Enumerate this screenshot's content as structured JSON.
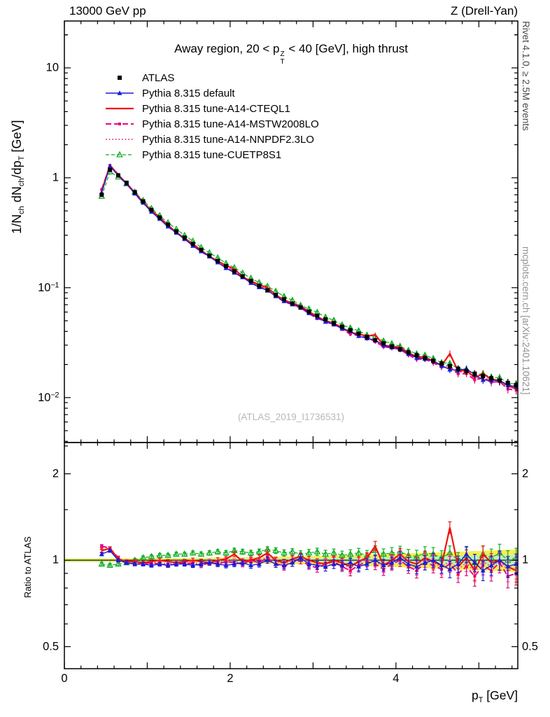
{
  "page": {
    "header_left": "13000 GeV pp",
    "header_right": "Z (Drell-Yan)",
    "rivet_note": "Rivet 4.1.0, ≥ 2.5M events",
    "mcplots_note": "mcplots.cern.ch [arXiv:2401.10621]",
    "watermark": "(ATLAS_2019_I1736531)"
  },
  "chart_data": {
    "type": "line",
    "title_text": "Away region, 20 < pT(Z) < 40 [GeV], high thrust",
    "title_parts": {
      "pre": "Away region, 20 < p",
      "stack_top": "Z",
      "stack_bottom": "T",
      "post": " < 40 [GeV], high thrust"
    },
    "xlabel_text": "pT [GeV]",
    "xlabel_segments": [
      {
        "t": "p"
      },
      {
        "t": "T",
        "s": "sub"
      },
      {
        "t": " [GeV]"
      }
    ],
    "ylabel_main_text": "1/Nch dNch/dpT [GeV]",
    "ylabel_main_segments": [
      {
        "t": "1/N"
      },
      {
        "t": "ch",
        "s": "sub"
      },
      {
        "t": " dN"
      },
      {
        "t": "ch",
        "s": "sub"
      },
      {
        "t": "/dp"
      },
      {
        "t": "T",
        "s": "sub"
      },
      {
        "t": " [GeV]"
      }
    ],
    "ylabel_ratio": "Ratio to ATLAS",
    "grid": false,
    "legend_position": "top-left-inside",
    "xlim": [
      0,
      5.47
    ],
    "ylim_main": [
      0.0039,
      26.7
    ],
    "ylim_ratio": [
      0.419,
      2.57
    ],
    "x_ticks": [
      {
        "v": 0,
        "label": "0"
      },
      {
        "v": 2,
        "label": "2"
      },
      {
        "v": 4,
        "label": "4"
      }
    ],
    "y_ticks_main": [
      {
        "v": 10,
        "label": "10",
        "exp": ""
      },
      {
        "v": 1,
        "label": "1",
        "exp": ""
      },
      {
        "v": 0.1,
        "label": "10",
        "exp": "−1"
      },
      {
        "v": 0.01,
        "label": "10",
        "exp": "−2"
      }
    ],
    "y_ticks_ratio": [
      {
        "v": 2,
        "label": "2"
      },
      {
        "v": 1,
        "label": "1"
      },
      {
        "v": 0.5,
        "label": "0.5"
      }
    ],
    "uncertainty_bands": {
      "outer_color": "#f7ee52",
      "inner_color": "#bdeebd"
    },
    "x": [
      0.45,
      0.55,
      0.65,
      0.75,
      0.85,
      0.95,
      1.05,
      1.15,
      1.25,
      1.35,
      1.45,
      1.55,
      1.65,
      1.75,
      1.85,
      1.95,
      2.05,
      2.15,
      2.25,
      2.35,
      2.45,
      2.55,
      2.65,
      2.75,
      2.85,
      2.95,
      3.05,
      3.15,
      3.25,
      3.35,
      3.45,
      3.55,
      3.65,
      3.75,
      3.85,
      3.95,
      4.05,
      4.15,
      4.25,
      4.35,
      4.45,
      4.55,
      4.65,
      4.75,
      4.85,
      4.95,
      5.05,
      5.15,
      5.25,
      5.35,
      5.45
    ],
    "err_frac": [
      0.015,
      0.015,
      0.015,
      0.015,
      0.015,
      0.016,
      0.016,
      0.017,
      0.017,
      0.018,
      0.018,
      0.019,
      0.02,
      0.021,
      0.022,
      0.022,
      0.023,
      0.024,
      0.025,
      0.026,
      0.027,
      0.028,
      0.03,
      0.031,
      0.032,
      0.034,
      0.035,
      0.037,
      0.038,
      0.04,
      0.042,
      0.044,
      0.046,
      0.048,
      0.05,
      0.052,
      0.054,
      0.056,
      0.059,
      0.061,
      0.063,
      0.066,
      0.068,
      0.071,
      0.074,
      0.076,
      0.079,
      0.082,
      0.085,
      0.088,
      0.09
    ],
    "series": [
      {
        "name": "ATLAS",
        "kind": "data",
        "color": "#000000",
        "line": "none",
        "marker": "square-filled",
        "values": [
          0.7,
          1.18,
          1.05,
          0.9,
          0.74,
          0.61,
          0.51,
          0.435,
          0.375,
          0.325,
          0.285,
          0.25,
          0.221,
          0.196,
          0.175,
          0.157,
          0.141,
          0.127,
          0.115,
          0.104,
          0.0945,
          0.086,
          0.0785,
          0.0718,
          0.0658,
          0.0605,
          0.0557,
          0.0514,
          0.0476,
          0.0441,
          0.041,
          0.0382,
          0.0356,
          0.0333,
          0.0312,
          0.0292,
          0.0274,
          0.0258,
          0.0243,
          0.0229,
          0.0216,
          0.0204,
          0.0193,
          0.0183,
          0.0174,
          0.0165,
          0.0157,
          0.015,
          0.0143,
          0.0136,
          0.013
        ]
      },
      {
        "name": "Pythia 8.315 default",
        "kind": "mc",
        "color": "#1c1cd6",
        "line": "solid",
        "width": 1.4,
        "marker": "triangle-filled",
        "ratio_to_atlas": [
          1.05,
          1.08,
          1.0,
          0.98,
          0.97,
          0.97,
          0.96,
          0.97,
          0.96,
          0.97,
          0.97,
          0.96,
          0.97,
          0.98,
          0.97,
          0.96,
          0.97,
          0.98,
          0.96,
          0.97,
          1.0,
          0.97,
          0.96,
          0.98,
          1.02,
          0.97,
          0.96,
          0.95,
          0.97,
          0.96,
          0.98,
          0.95,
          0.97,
          1.0,
          0.96,
          0.98,
          1.02,
          0.97,
          0.95,
          0.98,
          1.0,
          0.96,
          0.93,
          0.97,
          1.05,
          0.98,
          0.92,
          0.96,
          1.0,
          0.95,
          0.97
        ]
      },
      {
        "name": "Pythia 8.315 tune-A14-CTEQL1",
        "kind": "mc",
        "color": "#ef1310",
        "line": "solid",
        "width": 2.2,
        "marker": "none",
        "ratio_to_atlas": [
          1.08,
          1.1,
          1.01,
          0.99,
          0.99,
          0.98,
          0.99,
          1.0,
          0.99,
          0.98,
          0.99,
          1.0,
          0.99,
          0.98,
          1.0,
          1.01,
          1.05,
          0.99,
          1.0,
          1.02,
          1.06,
          1.0,
          0.98,
          1.01,
          1.03,
          1.0,
          0.98,
          0.97,
          1.0,
          0.98,
          0.95,
          0.99,
          1.02,
          1.12,
          0.96,
          1.0,
          1.05,
          0.99,
          0.97,
          1.02,
          0.99,
          0.96,
          1.3,
          0.95,
          1.02,
          0.92,
          1.05,
          0.98,
          1.0,
          0.95,
          0.92
        ]
      },
      {
        "name": "Pythia 8.315 tune-A14-MSTW2008LO",
        "kind": "mc",
        "color": "#e5097f",
        "line": "dash",
        "width": 2.0,
        "marker": "square-small",
        "ratio_to_atlas": [
          1.12,
          1.1,
          1.02,
          0.98,
          0.97,
          0.97,
          0.98,
          0.97,
          0.96,
          0.97,
          0.98,
          0.97,
          0.96,
          0.98,
          0.97,
          0.99,
          0.98,
          0.97,
          1.0,
          0.98,
          1.02,
          0.97,
          0.95,
          0.98,
          1.0,
          0.96,
          0.94,
          0.97,
          0.99,
          0.95,
          0.92,
          0.96,
          0.99,
          0.97,
          0.93,
          0.97,
          1.0,
          0.95,
          0.92,
          0.98,
          0.96,
          0.93,
          0.97,
          0.9,
          0.95,
          0.88,
          0.96,
          0.92,
          0.98,
          0.88,
          0.9
        ]
      },
      {
        "name": "Pythia 8.315 tune-A14-NNPDF2.3LO",
        "kind": "mc",
        "color": "#f04fa8",
        "line": "dot",
        "width": 2.0,
        "marker": "dot",
        "ratio_to_atlas": [
          1.1,
          1.08,
          1.0,
          0.98,
          0.98,
          0.97,
          0.98,
          0.98,
          0.97,
          0.98,
          0.99,
          0.98,
          0.97,
          0.99,
          0.98,
          1.0,
          0.99,
          0.98,
          1.01,
          0.99,
          1.03,
          0.99,
          0.97,
          1.0,
          1.02,
          0.98,
          0.96,
          0.98,
          1.0,
          0.97,
          0.94,
          0.98,
          1.01,
          0.99,
          0.95,
          0.99,
          1.03,
          0.97,
          0.94,
          1.0,
          0.98,
          0.95,
          0.99,
          0.93,
          0.98,
          0.91,
          0.99,
          0.95,
          1.0,
          0.92,
          0.94
        ]
      },
      {
        "name": "Pythia 8.315 tune-CUETP8S1",
        "kind": "mc",
        "color": "#0fae22",
        "line": "dash-thin",
        "width": 1.2,
        "marker": "triangle-open",
        "ratio_to_atlas": [
          0.97,
          0.96,
          0.97,
          0.98,
          1.0,
          1.02,
          1.03,
          1.04,
          1.04,
          1.05,
          1.05,
          1.06,
          1.05,
          1.06,
          1.07,
          1.06,
          1.08,
          1.07,
          1.06,
          1.07,
          1.09,
          1.08,
          1.06,
          1.07,
          1.05,
          1.06,
          1.07,
          1.05,
          1.06,
          1.04,
          1.05,
          1.06,
          1.04,
          1.08,
          1.05,
          1.06,
          1.07,
          1.04,
          1.03,
          1.06,
          1.05,
          1.02,
          1.06,
          1.0,
          1.04,
          0.98,
          1.05,
          1.02,
          1.06,
          1.0,
          1.02
        ]
      }
    ]
  }
}
